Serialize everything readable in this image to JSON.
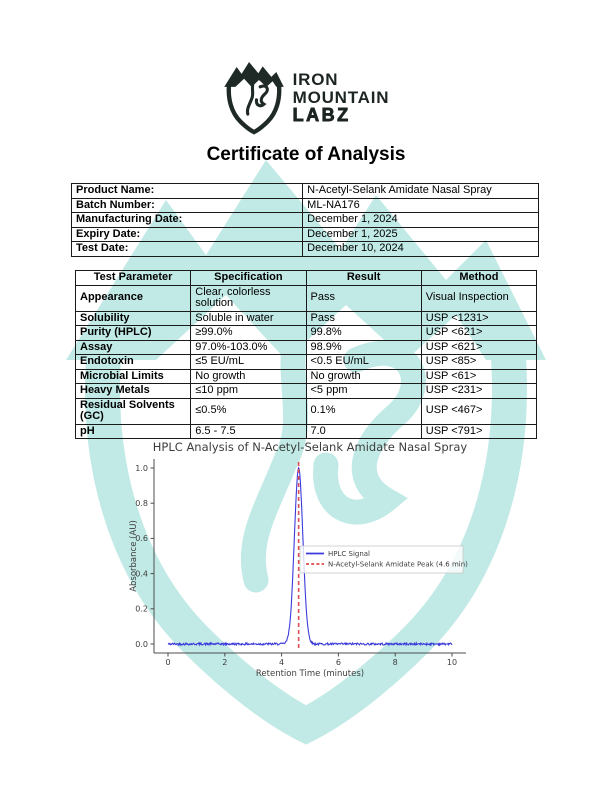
{
  "brand": {
    "icon": "mountain-shield-logo",
    "line1": "IRON",
    "line2": "MOUNTAIN",
    "line3": "LABZ",
    "logo_color": "#1f2a27",
    "watermark_color": "#b2e6e1"
  },
  "page": {
    "title": "Certificate of Analysis"
  },
  "product_info": {
    "rows": [
      {
        "label": "Product Name:",
        "value": "N-Acetyl-Selank Amidate Nasal Spray"
      },
      {
        "label": "Batch Number:",
        "value": "ML-NA176"
      },
      {
        "label": "Manufacturing Date:",
        "value": "December 1, 2024"
      },
      {
        "label": "Expiry Date:",
        "value": "December 1, 2025"
      },
      {
        "label": "Test Date:",
        "value": "December 10, 2024"
      }
    ]
  },
  "results": {
    "headers": [
      "Test Parameter",
      "Specification",
      "Result",
      "Method"
    ],
    "rows": [
      [
        "Appearance",
        "Clear, colorless solution",
        "Pass",
        "Visual Inspection"
      ],
      [
        "Solubility",
        "Soluble in water",
        "Pass",
        "USP <1231>"
      ],
      [
        "Purity (HPLC)",
        "≥99.0%",
        "99.8%",
        "USP <621>"
      ],
      [
        "Assay",
        "97.0%-103.0%",
        "98.9%",
        "USP <621>"
      ],
      [
        "Endotoxin",
        "≤5 EU/mL",
        "<0.5 EU/mL",
        "USP <85>"
      ],
      [
        "Microbial Limits",
        "No growth",
        "No growth",
        "USP <61>"
      ],
      [
        "Heavy Metals",
        "≤10 ppm",
        "<5 ppm",
        "USP <231>"
      ],
      [
        "Residual Solvents (GC)",
        "≤0.5%",
        "0.1%",
        "USP <467>"
      ],
      [
        "pH",
        "6.5 - 7.5",
        "7.0",
        "USP <791>"
      ]
    ]
  },
  "chart_data": {
    "type": "line",
    "title": "HPLC Analysis of N-Acetyl-Selank Amidate Nasal Spray",
    "xlabel": "Retention Time (minutes)",
    "ylabel": "Absorbance (AU)",
    "xlim": [
      0,
      10
    ],
    "ylim": [
      0,
      1.05
    ],
    "x_ticks": [
      0,
      2,
      4,
      6,
      8,
      10
    ],
    "y_ticks": [
      0.0,
      0.2,
      0.4,
      0.6,
      0.8,
      1.0
    ],
    "grid": false,
    "legend_position": "center right",
    "series": [
      {
        "name": "HPLC Signal",
        "color": "#3b3bdb",
        "shape": "gaussian_peak",
        "peak_center_min": 4.6,
        "peak_height_au": 1.0,
        "peak_sigma_min": 0.15,
        "baseline_au": 0.0,
        "noise_au": 0.006
      }
    ],
    "peak_marker": {
      "name": "N-Acetyl-Selank Amidate Peak (4.6 min)",
      "x_min": 4.6,
      "color": "#e04f4f",
      "line_style": "dashed"
    }
  }
}
